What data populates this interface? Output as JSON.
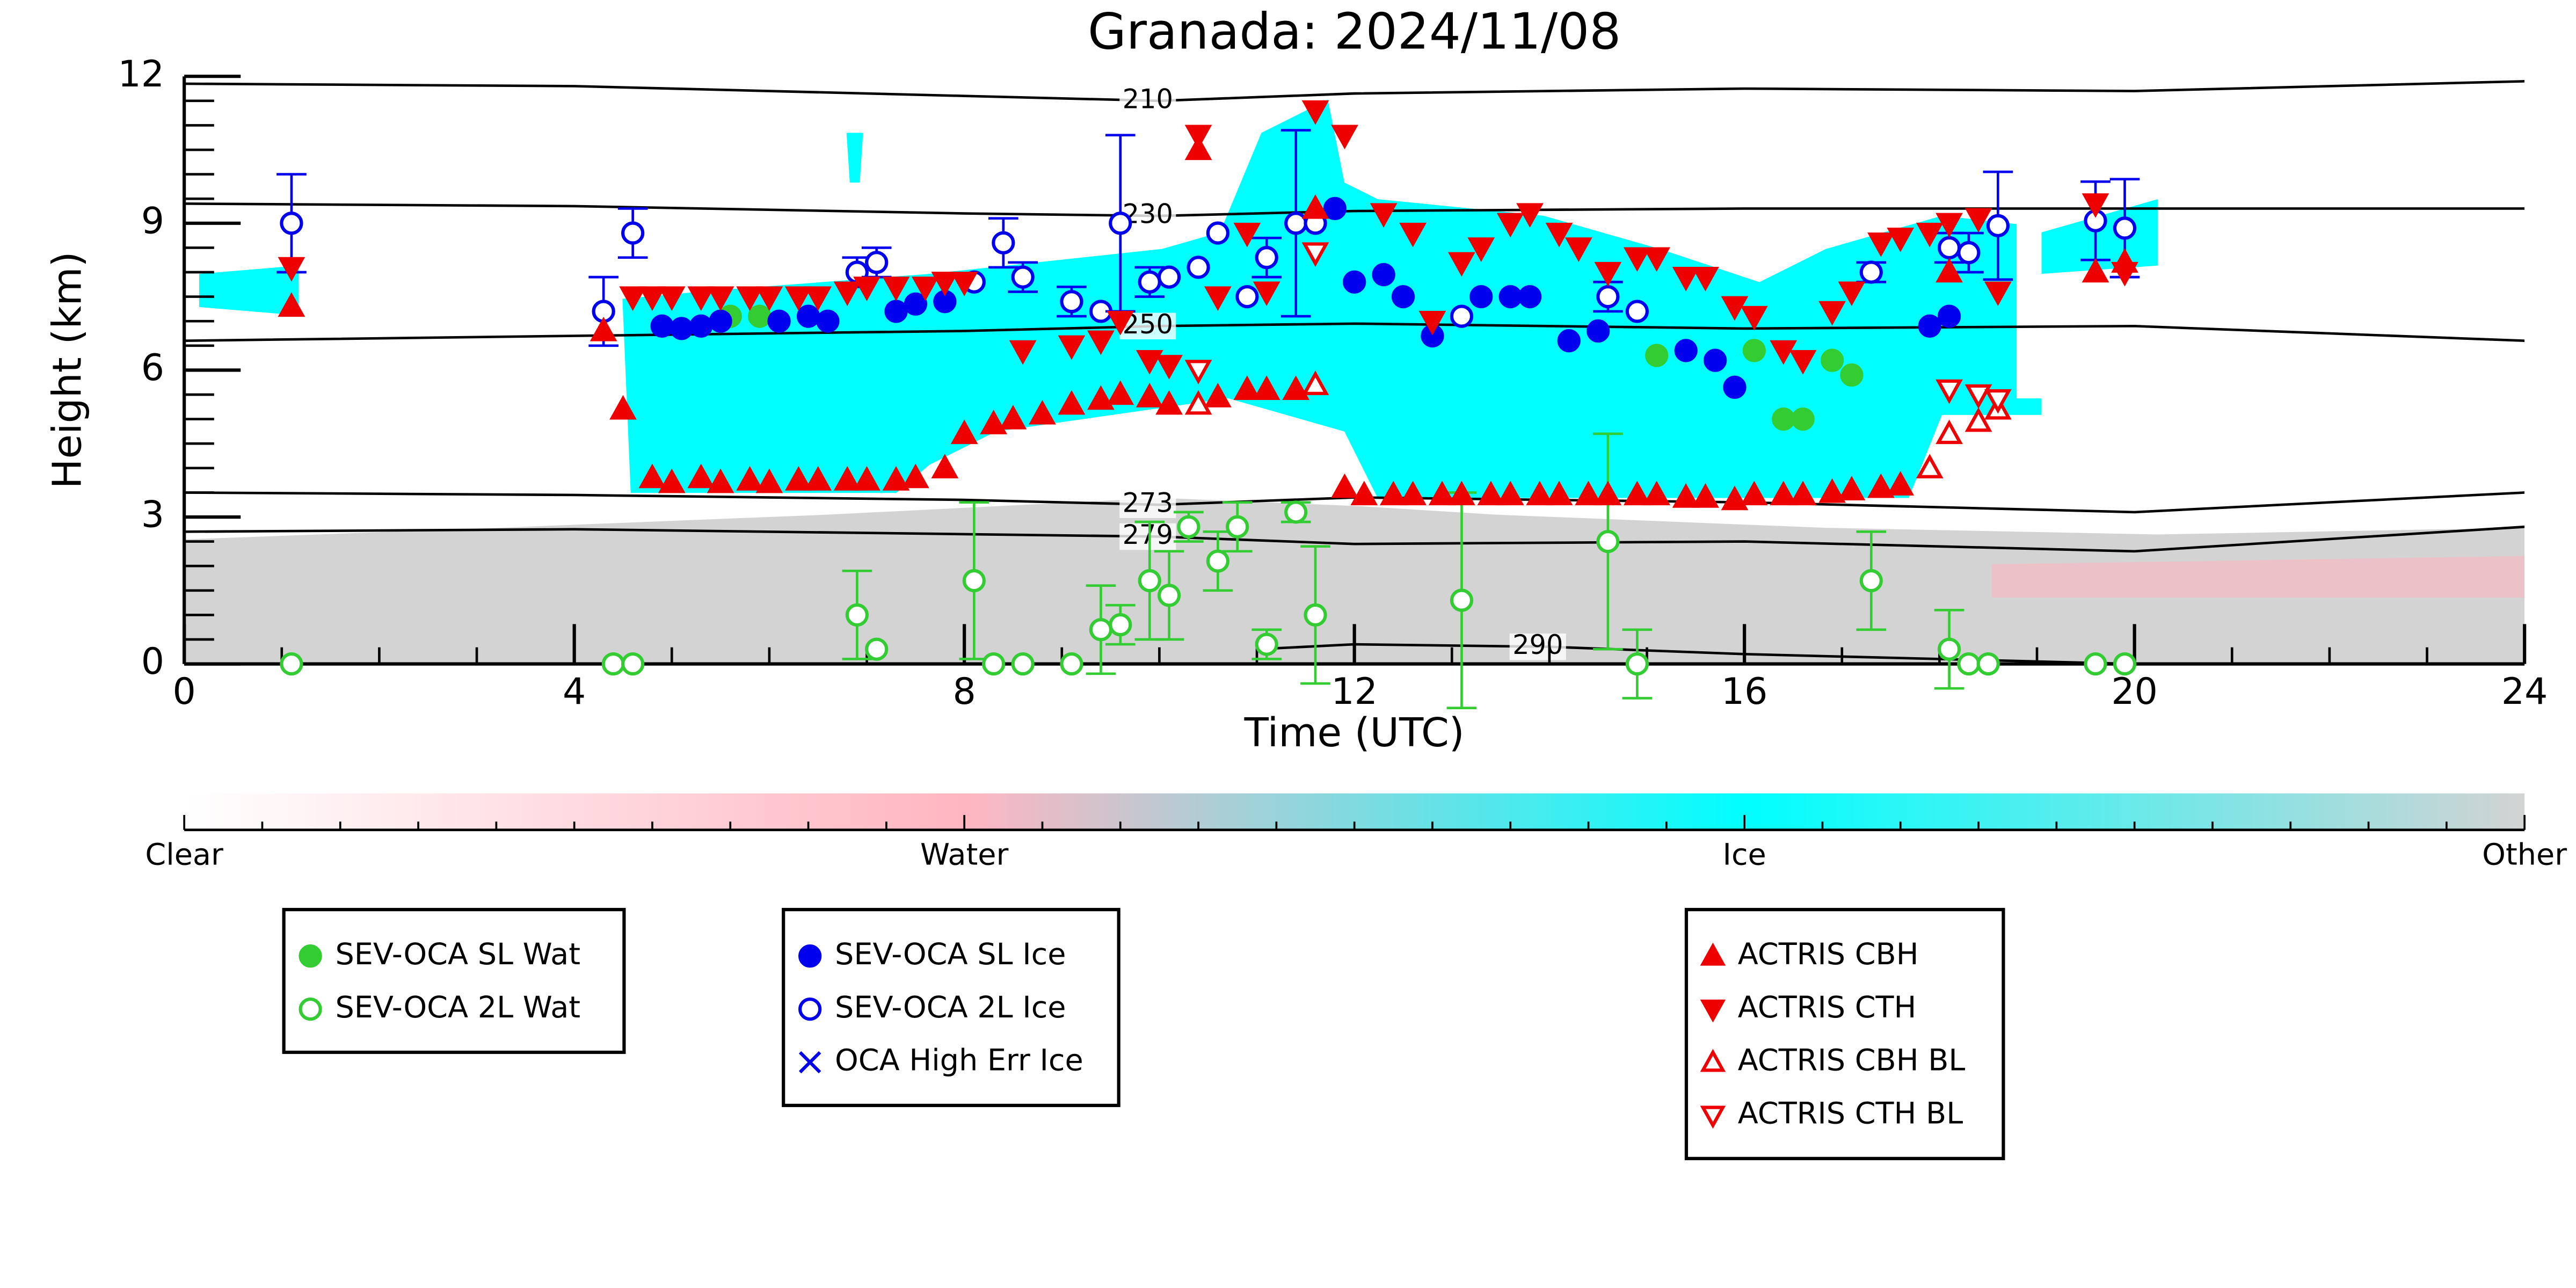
{
  "chart_data": {
    "type": "scatter",
    "title": "Granada: 2024/11/08",
    "x_label": "Time (UTC)",
    "y_label": "Height (km)",
    "xlim": [
      0,
      24
    ],
    "xticks": [
      0,
      4,
      8,
      12,
      16,
      20,
      24
    ],
    "ylim": [
      0,
      12
    ],
    "yticks": [
      0,
      3,
      6,
      9,
      12
    ],
    "colorbar": {
      "labels": [
        "Clear",
        "Water",
        "Ice",
        "Other"
      ],
      "colors": [
        "#ffffff",
        "#ffb6c1",
        "#00ffff",
        "#d3d3d3"
      ]
    },
    "contours": [
      {
        "label": "210",
        "x": [
          0,
          4,
          8,
          10,
          12,
          16,
          20,
          24
        ],
        "y": [
          11.85,
          11.8,
          11.6,
          11.5,
          11.65,
          11.75,
          11.7,
          11.9
        ]
      },
      {
        "label": "230",
        "x": [
          0,
          4,
          8,
          10,
          12,
          16,
          20,
          24
        ],
        "y": [
          9.4,
          9.35,
          9.2,
          9.15,
          9.25,
          9.3,
          9.3,
          9.3
        ]
      },
      {
        "label": "250",
        "x": [
          0,
          4,
          8,
          10,
          12,
          16,
          20,
          24
        ],
        "y": [
          6.6,
          6.7,
          6.8,
          6.9,
          6.95,
          6.85,
          6.9,
          6.6
        ]
      },
      {
        "label": "273",
        "x": [
          0,
          4,
          8,
          10,
          12,
          16,
          20,
          24
        ],
        "y": [
          3.5,
          3.45,
          3.35,
          3.25,
          3.4,
          3.3,
          3.1,
          3.5
        ]
      },
      {
        "label": "279",
        "x": [
          0,
          4,
          8,
          10,
          12,
          16,
          20,
          24
        ],
        "y": [
          2.7,
          2.75,
          2.65,
          2.6,
          2.45,
          2.5,
          2.3,
          2.8
        ]
      },
      {
        "label": "290",
        "x": [
          11,
          12,
          14,
          16,
          18,
          20
        ],
        "y": [
          0.3,
          0.4,
          0.35,
          0.2,
          0.1,
          0
        ]
      }
    ],
    "series": [
      {
        "name": "SEV-OCA SL Wat",
        "color": "#33cc33",
        "marker": "circle",
        "filled": true,
        "x": [
          5.6,
          5.9,
          15.1,
          16.1,
          16.4,
          16.6,
          16.9,
          17.1
        ],
        "values": [
          7.1,
          7.1,
          6.3,
          6.4,
          5.0,
          5.0,
          6.2,
          5.9
        ]
      },
      {
        "name": "SEV-OCA 2L Wat",
        "color": "#33cc33",
        "marker": "circle",
        "filled": false,
        "x": [
          1.1,
          4.4,
          4.6,
          6.9,
          7.1,
          8.1,
          8.3,
          8.6,
          9.1,
          9.4,
          9.6,
          9.9,
          10.1,
          10.3,
          10.6,
          10.8,
          11.1,
          11.4,
          11.6,
          13.1,
          14.6,
          14.9,
          17.3,
          18.1,
          18.3,
          18.5,
          19.6,
          19.9
        ],
        "values": [
          0,
          0,
          0,
          1.0,
          0.3,
          1.7,
          0,
          0,
          0,
          0.7,
          0.8,
          1.7,
          1.4,
          2.8,
          2.1,
          2.8,
          0.4,
          3.1,
          1.0,
          1.3,
          2.5,
          0,
          1.7,
          0.3,
          0,
          0,
          0,
          0
        ],
        "errors": [
          null,
          null,
          null,
          0.9,
          null,
          1.6,
          null,
          null,
          null,
          0.9,
          0.4,
          1.2,
          0.9,
          0.3,
          0.6,
          0.5,
          0.3,
          0.2,
          1.4,
          2.2,
          2.2,
          0.7,
          1.0,
          0.8,
          null,
          null,
          null,
          null
        ]
      },
      {
        "name": "SEV-OCA SL Ice",
        "color": "#0000ee",
        "marker": "circle",
        "filled": true,
        "x": [
          4.9,
          5.1,
          5.3,
          5.5,
          6.1,
          6.4,
          6.6,
          7.3,
          7.5,
          7.8,
          11.8,
          12.0,
          12.3,
          12.5,
          12.8,
          13.3,
          13.6,
          13.8,
          14.2,
          14.5,
          15.4,
          15.7,
          15.9,
          17.9,
          18.1
        ],
        "values": [
          6.9,
          6.85,
          6.9,
          7.0,
          7.0,
          7.1,
          7.0,
          7.2,
          7.35,
          7.4,
          9.3,
          7.8,
          7.95,
          7.5,
          6.7,
          7.5,
          7.5,
          7.5,
          6.6,
          6.8,
          6.4,
          6.2,
          5.65,
          6.9,
          7.1
        ]
      },
      {
        "name": "SEV-OCA 2L Ice",
        "color": "#0000ee",
        "marker": "circle",
        "filled": false,
        "x": [
          1.1,
          4.3,
          4.6,
          6.9,
          7.1,
          8.1,
          8.4,
          8.6,
          9.1,
          9.4,
          9.6,
          9.9,
          10.1,
          10.4,
          10.6,
          10.9,
          11.1,
          11.4,
          11.6,
          13.1,
          14.6,
          14.9,
          17.3,
          18.1,
          18.3,
          18.6,
          19.6,
          19.9
        ],
        "values": [
          9.0,
          7.2,
          8.8,
          8.0,
          8.2,
          7.8,
          8.6,
          7.9,
          7.4,
          7.2,
          9.0,
          7.8,
          7.9,
          8.1,
          8.8,
          7.5,
          8.3,
          9.0,
          9.0,
          7.1,
          7.5,
          7.2,
          8.0,
          8.5,
          8.4,
          8.95,
          9.05,
          8.9
        ],
        "errors": [
          1.0,
          0.7,
          0.5,
          0.3,
          0.3,
          null,
          0.5,
          0.3,
          0.3,
          null,
          1.8,
          0.3,
          null,
          null,
          null,
          null,
          0.4,
          1.9,
          null,
          null,
          0.3,
          null,
          0.2,
          0.3,
          0.4,
          1.1,
          0.8,
          1.0
        ]
      },
      {
        "name": "OCA High Err Ice",
        "color": "#0000ee",
        "marker": "x",
        "filled": false,
        "x": [],
        "values": []
      },
      {
        "name": "ACTRIS CBH",
        "color": "#ee0000",
        "marker": "up",
        "filled": true,
        "x": [
          1.1,
          4.3,
          4.5,
          4.8,
          5.0,
          5.3,
          5.5,
          5.8,
          6.0,
          6.3,
          6.5,
          6.8,
          7.0,
          7.3,
          7.5,
          7.8,
          8.0,
          8.3,
          8.5,
          8.8,
          9.1,
          9.4,
          9.6,
          9.9,
          10.1,
          10.4,
          10.6,
          10.9,
          11.1,
          11.4,
          11.6,
          11.9,
          12.1,
          12.4,
          12.6,
          12.9,
          13.1,
          13.4,
          13.6,
          13.9,
          14.1,
          14.4,
          14.6,
          14.9,
          15.1,
          15.4,
          15.6,
          15.9,
          16.1,
          16.4,
          16.6,
          16.9,
          17.1,
          17.4,
          17.6,
          18.1,
          19.6,
          19.9
        ],
        "values": [
          7.3,
          6.8,
          5.2,
          3.8,
          3.7,
          3.8,
          3.7,
          3.75,
          3.7,
          3.75,
          3.75,
          3.75,
          3.75,
          3.75,
          3.8,
          4.0,
          4.7,
          4.9,
          5.0,
          5.1,
          5.3,
          5.4,
          5.5,
          5.45,
          5.3,
          10.5,
          5.45,
          5.6,
          5.6,
          5.6,
          9.3,
          3.6,
          3.45,
          3.45,
          3.45,
          3.45,
          3.45,
          3.45,
          3.45,
          3.45,
          3.45,
          3.45,
          3.45,
          3.45,
          3.45,
          3.4,
          3.4,
          3.35,
          3.45,
          3.45,
          3.45,
          3.5,
          3.55,
          3.6,
          3.65,
          8.0,
          8.0,
          8.2
        ]
      },
      {
        "name": "ACTRIS CTH",
        "color": "#ee0000",
        "marker": "down",
        "filled": true,
        "x": [
          1.1,
          4.6,
          4.8,
          5.0,
          5.3,
          5.5,
          5.8,
          6.0,
          6.3,
          6.5,
          6.8,
          7.0,
          7.3,
          7.6,
          7.8,
          8.0,
          8.6,
          9.1,
          9.4,
          9.6,
          9.9,
          10.1,
          10.4,
          10.6,
          10.9,
          11.1,
          11.6,
          11.9,
          12.3,
          12.6,
          12.8,
          13.1,
          13.3,
          13.6,
          13.8,
          14.1,
          14.3,
          14.6,
          14.9,
          15.1,
          15.4,
          15.6,
          15.9,
          16.1,
          16.4,
          16.6,
          16.9,
          17.1,
          17.4,
          17.6,
          17.9,
          18.1,
          18.4,
          18.6,
          19.6,
          19.9
        ],
        "values": [
          8.1,
          7.5,
          7.5,
          7.5,
          7.5,
          7.5,
          7.5,
          7.5,
          7.5,
          7.5,
          7.6,
          7.7,
          7.7,
          7.7,
          7.8,
          7.8,
          6.4,
          6.5,
          6.6,
          7.0,
          6.2,
          6.1,
          10.8,
          7.5,
          8.8,
          7.6,
          11.3,
          10.8,
          9.2,
          8.8,
          7.0,
          8.2,
          8.5,
          9.0,
          9.2,
          8.8,
          8.5,
          8.0,
          8.3,
          8.3,
          7.9,
          7.9,
          7.3,
          7.1,
          6.4,
          6.2,
          7.2,
          7.6,
          8.6,
          8.7,
          8.8,
          9.0,
          9.1,
          7.6,
          9.4,
          8.0
        ]
      },
      {
        "name": "ACTRIS CBH BL",
        "color": "#ee0000",
        "marker": "up",
        "filled": false,
        "x": [
          10.4,
          11.6,
          17.9,
          18.1,
          18.4,
          18.6
        ],
        "values": [
          5.3,
          5.7,
          4.0,
          4.7,
          4.95,
          5.2
        ]
      },
      {
        "name": "ACTRIS CTH BL",
        "color": "#ee0000",
        "marker": "down",
        "filled": false,
        "x": [
          10.4,
          11.6,
          18.1,
          18.4,
          18.6
        ],
        "values": [
          6.0,
          8.4,
          5.6,
          5.5,
          5.4
        ]
      }
    ]
  }
}
